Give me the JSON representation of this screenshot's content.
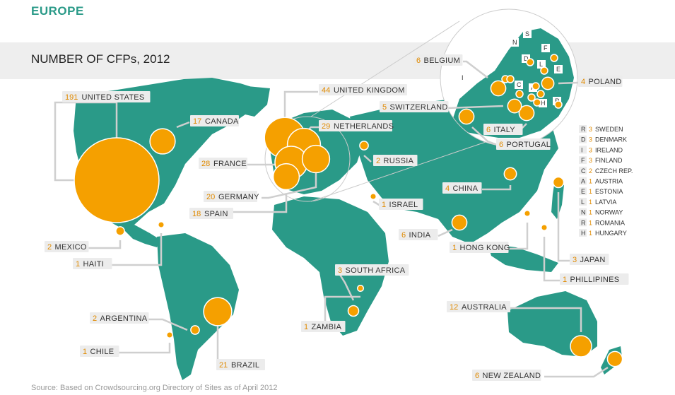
{
  "header": {
    "section_title": "EUROPE",
    "chart_title": "NUMBER OF CFPs, 2012",
    "source": "Source: Based on Crowdsourcing.org Directory of Sites as of April 2012"
  },
  "colors": {
    "land": "#2a9a88",
    "bubble": "#f5a000",
    "value_text": "#e08a00",
    "label_bg": "#ececec",
    "band": "#eeeeee"
  },
  "chart_data": {
    "type": "bubble-map",
    "countries": [
      {
        "name": "UNITED STATES",
        "value": 191
      },
      {
        "name": "UNITED KINGDOM",
        "value": 44
      },
      {
        "name": "NETHERLANDS",
        "value": 29
      },
      {
        "name": "FRANCE",
        "value": 28
      },
      {
        "name": "BRAZIL",
        "value": 21
      },
      {
        "name": "GERMANY",
        "value": 20
      },
      {
        "name": "SPAIN",
        "value": 18
      },
      {
        "name": "CANADA",
        "value": 17
      },
      {
        "name": "AUSTRALIA",
        "value": 12
      },
      {
        "name": "BELGIUM",
        "value": 6
      },
      {
        "name": "ITALY",
        "value": 6
      },
      {
        "name": "PORTUGAL",
        "value": 6
      },
      {
        "name": "INDIA",
        "value": 6
      },
      {
        "name": "NEW ZEALAND",
        "value": 6
      },
      {
        "name": "SWITZERLAND",
        "value": 5
      },
      {
        "name": "POLAND",
        "value": 4
      },
      {
        "name": "CHINA",
        "value": 4
      },
      {
        "name": "SOUTH AFRICA",
        "value": 3
      },
      {
        "name": "JAPAN",
        "value": 3
      },
      {
        "name": "RUSSIA",
        "value": 2
      },
      {
        "name": "MEXICO",
        "value": 2
      },
      {
        "name": "ARGENTINA",
        "value": 2
      },
      {
        "name": "ISRAEL",
        "value": 1
      },
      {
        "name": "HONG KONG",
        "value": 1
      },
      {
        "name": "HAITI",
        "value": 1
      },
      {
        "name": "ZAMBIA",
        "value": 1
      },
      {
        "name": "CHILE",
        "value": 1
      },
      {
        "name": "PHILLIPINES",
        "value": 1
      }
    ],
    "europe_legend": [
      {
        "key": "R",
        "value": 3,
        "name": "SWEDEN"
      },
      {
        "key": "D",
        "value": 3,
        "name": "DENMARK"
      },
      {
        "key": "I",
        "value": 3,
        "name": "IRELAND"
      },
      {
        "key": "F",
        "value": 3,
        "name": "FINLAND"
      },
      {
        "key": "C",
        "value": 2,
        "name": "CZECH REP."
      },
      {
        "key": "A",
        "value": 1,
        "name": "AUSTRIA"
      },
      {
        "key": "E",
        "value": 1,
        "name": "ESTONIA"
      },
      {
        "key": "L",
        "value": 1,
        "name": "LATVIA"
      },
      {
        "key": "N",
        "value": 1,
        "name": "NORWAY"
      },
      {
        "key": "R",
        "value": 1,
        "name": "ROMANIA"
      },
      {
        "key": "H",
        "value": 1,
        "name": "HUNGARY"
      }
    ],
    "inset_letters": [
      "N",
      "S",
      "F",
      "D",
      "L",
      "E",
      "I",
      "C",
      "A",
      "H",
      "R"
    ]
  }
}
